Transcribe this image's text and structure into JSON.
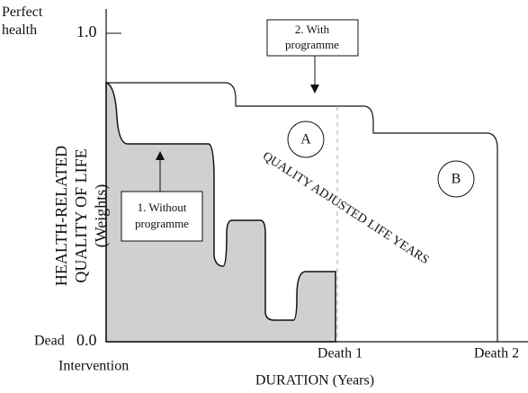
{
  "axes": {
    "y_top_label": "Perfect health",
    "y_top_tick": "1.0",
    "y_bottom_label": "Dead",
    "y_bottom_tick": "0.0",
    "y_title": [
      "HEALTH-RELATED",
      "QUALITY OF LIFE",
      "(Weights)"
    ],
    "x_start": "Intervention",
    "x_death1": "Death 1",
    "x_death2": "Death 2",
    "x_title": "DURATION (Years)"
  },
  "annotations": {
    "with_programme": [
      "2. With",
      "programme"
    ],
    "without_programme": [
      "1. Without",
      "programme"
    ],
    "area_a": "A",
    "area_b": "B",
    "qaly": "QUALITY ADJUSTED LIFE YEARS"
  }
}
